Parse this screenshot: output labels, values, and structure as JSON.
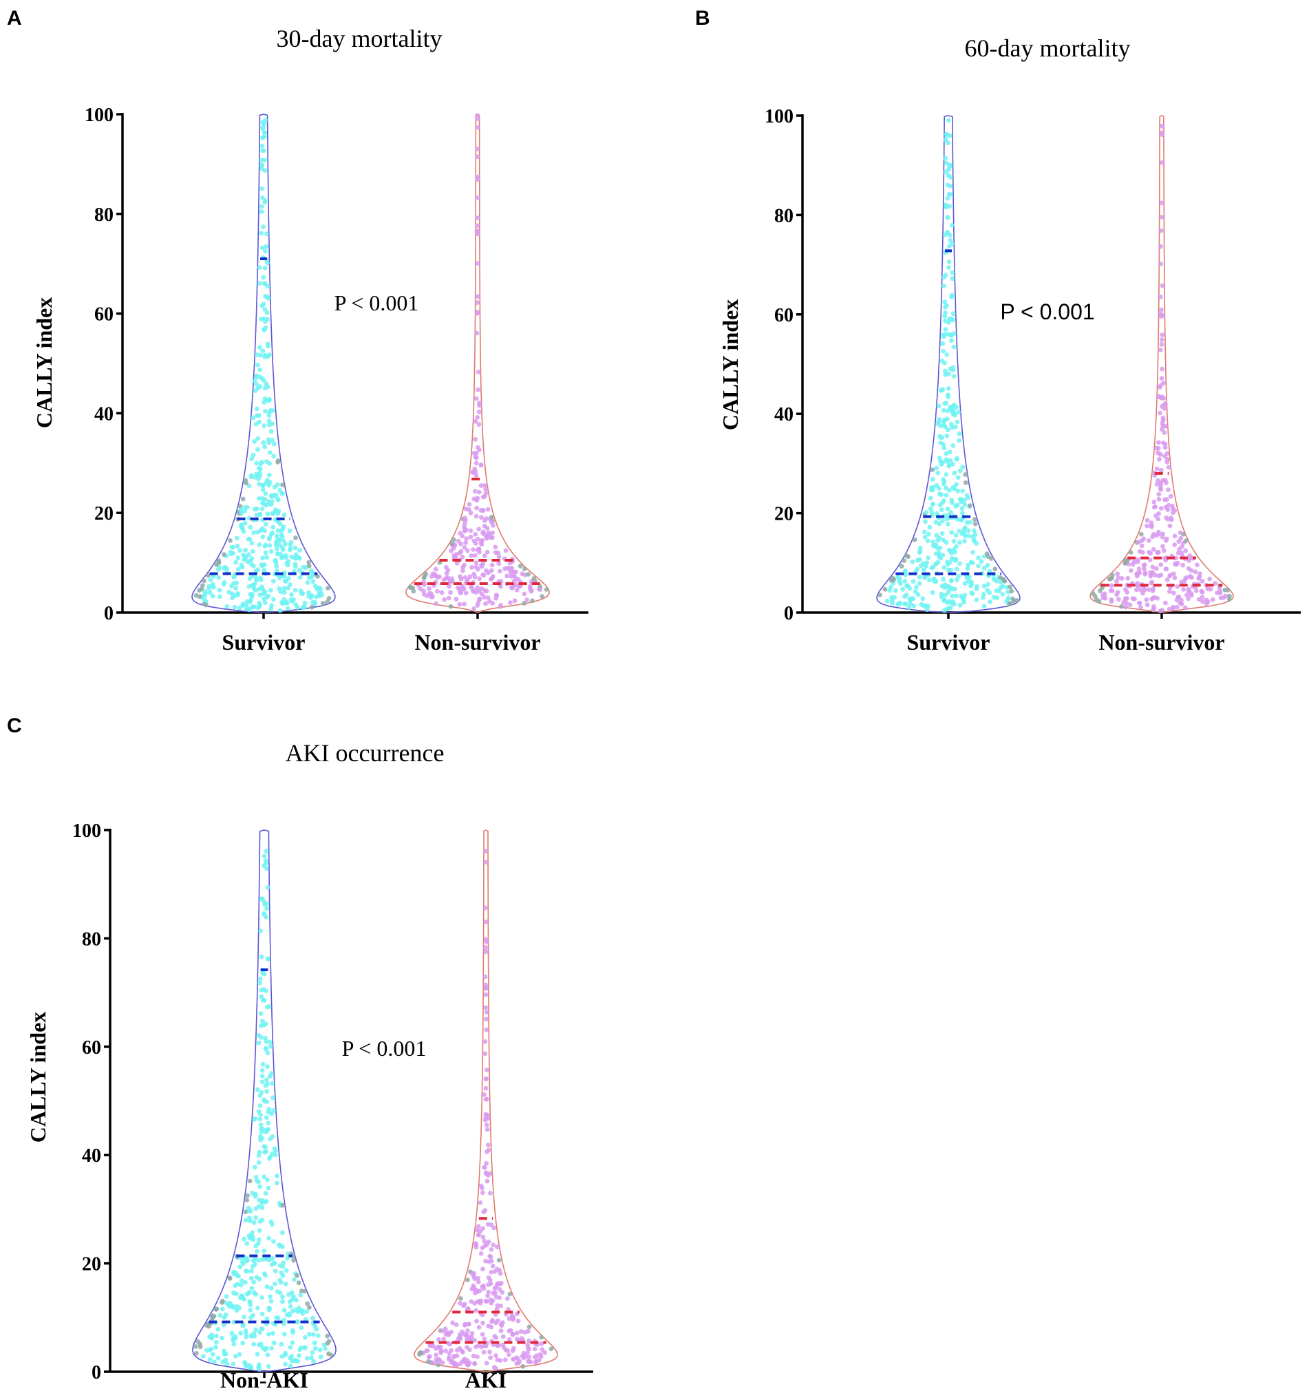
{
  "chart_data": [
    {
      "panel": "A",
      "type": "violin",
      "title": "30-day mortality",
      "ylabel": "CALLY index",
      "xlabel": "",
      "ylim": [
        0,
        100
      ],
      "yticks": [
        0,
        20,
        40,
        60,
        80,
        100
      ],
      "annotation": "P < 0.001",
      "annotation_font": "serif",
      "categories": [
        "Survivor",
        "Non-survivor"
      ],
      "series": [
        {
          "name": "Survivor",
          "fill": "#6ff2f2",
          "outline": "#5a57d6",
          "quartile_color": "#1230c9",
          "q1": 7.8,
          "median": 18.8,
          "q3": 71.0,
          "max": 100,
          "min": 0.5,
          "n": 480
        },
        {
          "name": "Non-survivor",
          "fill": "#d89af0",
          "outline": "#e07a6e",
          "quartile_color": "#e0283c",
          "q1": 5.8,
          "median": 10.5,
          "q3": 26.8,
          "max": 100,
          "min": 0.5,
          "n": 300
        }
      ]
    },
    {
      "panel": "B",
      "type": "violin",
      "title": "60-day mortality",
      "ylabel": "CALLY index",
      "xlabel": "",
      "ylim": [
        0,
        100
      ],
      "yticks": [
        0,
        20,
        40,
        60,
        80,
        100
      ],
      "annotation": "P < 0.001",
      "annotation_font": "sans",
      "categories": [
        "Survivor",
        "Non-survivor"
      ],
      "series": [
        {
          "name": "Survivor",
          "fill": "#6ff2f2",
          "outline": "#5a57d6",
          "quartile_color": "#1230c9",
          "q1": 7.8,
          "median": 19.3,
          "q3": 72.8,
          "max": 100,
          "min": 0.5,
          "n": 460
        },
        {
          "name": "Non-survivor",
          "fill": "#d89af0",
          "outline": "#e07a6e",
          "quartile_color": "#e0283c",
          "q1": 5.5,
          "median": 11.0,
          "q3": 28.0,
          "max": 100,
          "min": 0.5,
          "n": 320
        }
      ]
    },
    {
      "panel": "C",
      "type": "violin",
      "title": "AKI occurrence",
      "ylabel": "CALLY index",
      "xlabel": "",
      "ylim": [
        0,
        100
      ],
      "yticks": [
        0,
        20,
        40,
        60,
        80,
        100
      ],
      "annotation": "P < 0.001",
      "annotation_font": "serif",
      "categories": [
        "Non-AKI",
        "AKI"
      ],
      "series": [
        {
          "name": "Non-AKI",
          "fill": "#6ff2f2",
          "outline": "#5a57d6",
          "quartile_color": "#1230c9",
          "q1": 9.2,
          "median": 21.4,
          "q3": 74.2,
          "max": 100,
          "min": 0.5,
          "n": 440
        },
        {
          "name": "AKI",
          "fill": "#d89af0",
          "outline": "#e07a6e",
          "quartile_color": "#e0283c",
          "q1": 5.4,
          "median": 11.0,
          "q3": 28.3,
          "max": 100,
          "min": 0.5,
          "n": 340
        }
      ]
    }
  ]
}
